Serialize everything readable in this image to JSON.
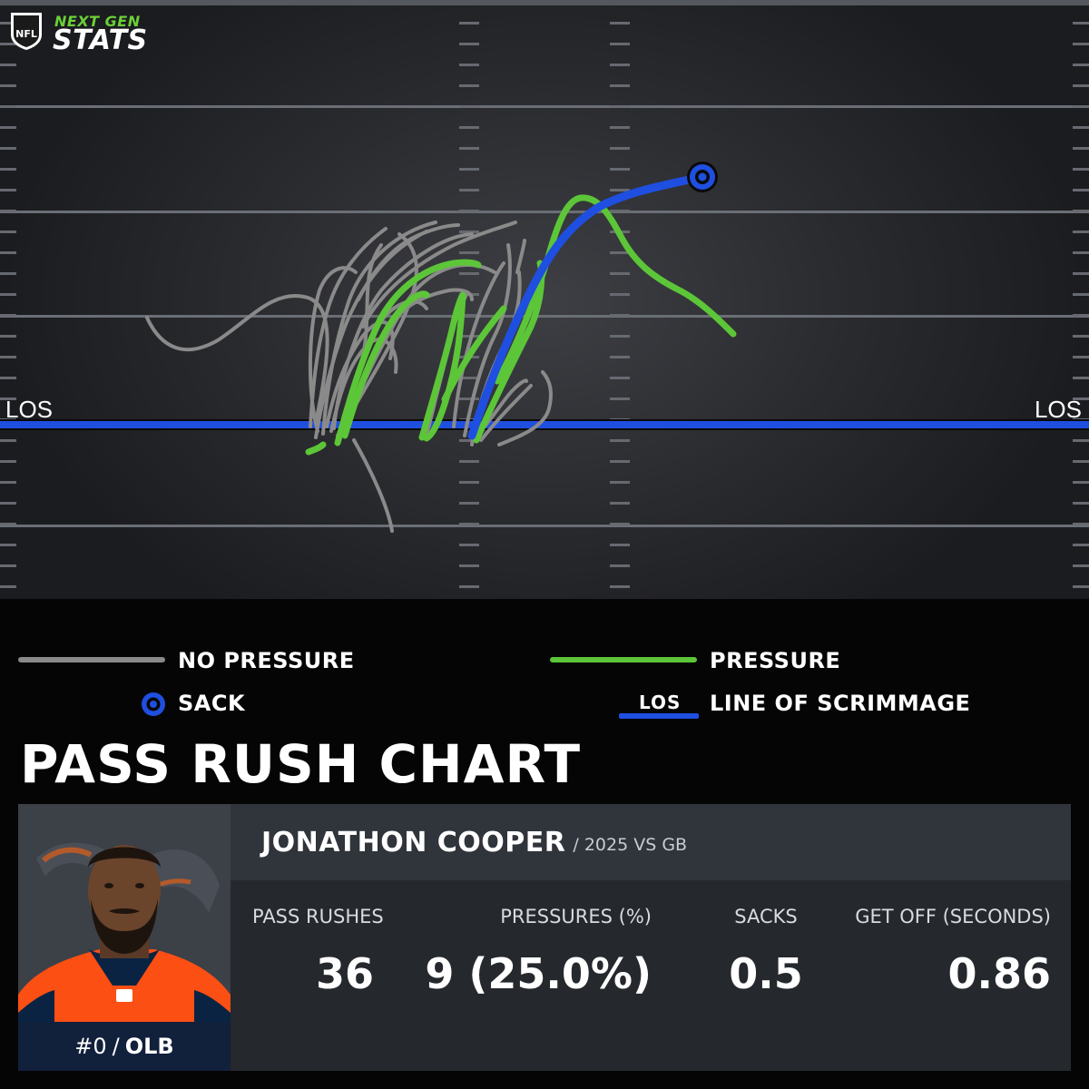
{
  "brand": {
    "line1": "NEXT GEN",
    "line2": "STATS",
    "shield_text": "NFL"
  },
  "field": {
    "los_left": "LOS",
    "los_right": "LOS"
  },
  "legend": {
    "no_pressure": "NO PRESSURE",
    "pressure": "PRESSURE",
    "sack": "SACK",
    "los_badge": "LOS",
    "line_of_scrimmage": "LINE OF SCRIMMAGE"
  },
  "title": "PASS RUSH CHART",
  "player": {
    "name": "JONATHON COOPER",
    "season_opponent": "/ 2025 VS GB",
    "number": "#0",
    "separator": "/",
    "position": "OLB"
  },
  "stats": [
    {
      "label": "PASS RUSHES",
      "value": "36"
    },
    {
      "label": "PRESSURES (%)",
      "value": "9 (25.0%)"
    },
    {
      "label": "SACKS",
      "value": "0.5"
    },
    {
      "label": "GET OFF (SECONDS)",
      "value": "0.86"
    }
  ],
  "colors": {
    "no_pressure": "#8a8a8a",
    "pressure": "#5cc638",
    "sack": "#1f4fe0",
    "los": "#1f4fe0",
    "team_orange": "#fb4f14",
    "team_navy": "#0a2343"
  },
  "chart_data": {
    "type": "line",
    "title": "PASS RUSH CHART",
    "series": [
      {
        "name": "NO PRESSURE",
        "count": 27
      },
      {
        "name": "PRESSURE",
        "count": 8
      },
      {
        "name": "SACK",
        "count": 1
      }
    ]
  }
}
